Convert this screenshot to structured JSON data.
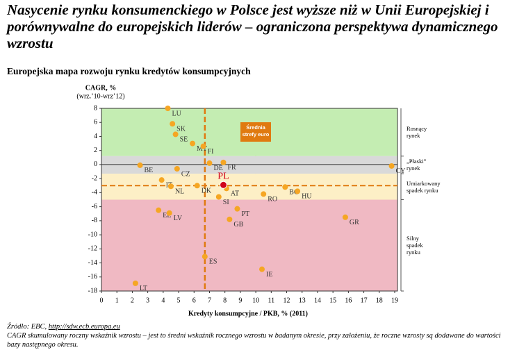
{
  "header": {
    "title": "Nasycenie rynku konsumenckiego w Polsce jest wyższe niż w Unii Europejskiej i porównywalne do europejskich liderów – ograniczona perspektywa dynamicznego wzrostu",
    "subtitle": "Europejska mapa rozwoju rynku kredytów konsumpcyjnych"
  },
  "chart_data": {
    "type": "scatter",
    "y_label": "CAGR, %",
    "y_label_sub": "(wrz.’10-wrz’12)",
    "x_label": "Kredyty konsumpcyjne / PKB, % (2011)",
    "xlim": [
      0,
      19
    ],
    "ylim": [
      -18,
      8
    ],
    "xticks": [
      0,
      1,
      2,
      3,
      4,
      5,
      6,
      7,
      8,
      9,
      10,
      11,
      12,
      13,
      14,
      15,
      16,
      17,
      18,
      19
    ],
    "yticks": [
      8,
      6,
      4,
      2,
      0,
      -2,
      -4,
      -6,
      -8,
      -10,
      -12,
      -14,
      -16,
      -18
    ],
    "bands": [
      {
        "from": 1.2,
        "to": 8,
        "color": "#c4edb2",
        "label": "Rosnący\nrynek"
      },
      {
        "from": -1.3,
        "to": 1.2,
        "color": "#d9d9d9",
        "label": "„Płaski”\nrynek"
      },
      {
        "from": -5,
        "to": -1.3,
        "color": "#fdefc6",
        "label": "Umiarkowany\nspadek rynku"
      },
      {
        "from": -18,
        "to": -5,
        "color": "#f0b9c3",
        "label": "Silny\nspadek\nrynku"
      }
    ],
    "ref_x": 6.7,
    "ref_y": -3,
    "ref_color": "#e07a10",
    "annotation": "Średnia\nstrefy euro",
    "series": [
      {
        "color": "#f5a623",
        "labels": [
          "LU",
          "SK",
          "SE",
          "MT",
          "FI",
          "FR",
          "DE",
          "CY",
          "BE",
          "CZ",
          "IT",
          "NL",
          "DK",
          "AT",
          "SI",
          "RO",
          "BG",
          "HU",
          "EE",
          "LV",
          "PT",
          "GB",
          "GR",
          "ES",
          "IE",
          "LT"
        ],
        "x": [
          4.3,
          4.6,
          4.8,
          5.9,
          6.6,
          7.9,
          7.0,
          18.8,
          2.5,
          4.9,
          3.9,
          4.5,
          6.2,
          8.1,
          7.6,
          10.5,
          11.9,
          12.7,
          3.7,
          4.4,
          8.8,
          8.3,
          15.8,
          6.7,
          10.4,
          2.2
        ],
        "values": [
          8,
          5.8,
          4.3,
          3,
          2.6,
          0.3,
          0.2,
          -0.2,
          -0.1,
          -0.6,
          -2.2,
          -3.1,
          -3,
          -3.4,
          -4.6,
          -4.2,
          -3.2,
          -3.8,
          -6.5,
          -6.9,
          -6.3,
          -7.8,
          -7.5,
          -13.1,
          -14.9,
          -16.9
        ]
      },
      {
        "color": "#d0021b",
        "labels": [
          "PL"
        ],
        "x": [
          7.9
        ],
        "values": [
          -2.9
        ]
      }
    ]
  },
  "footer": {
    "source": "Źródło: EBC, ",
    "link": "http://sdw.ecb.europa.eu",
    "note": "CAGR skumulowany roczny wskaźnik wzrostu – jest to średni wskaźnik rocznego wzrostu w badanym okresie, przy założeniu, że roczne wzrosty są dodawane do wartości bazy następnego okresu."
  }
}
